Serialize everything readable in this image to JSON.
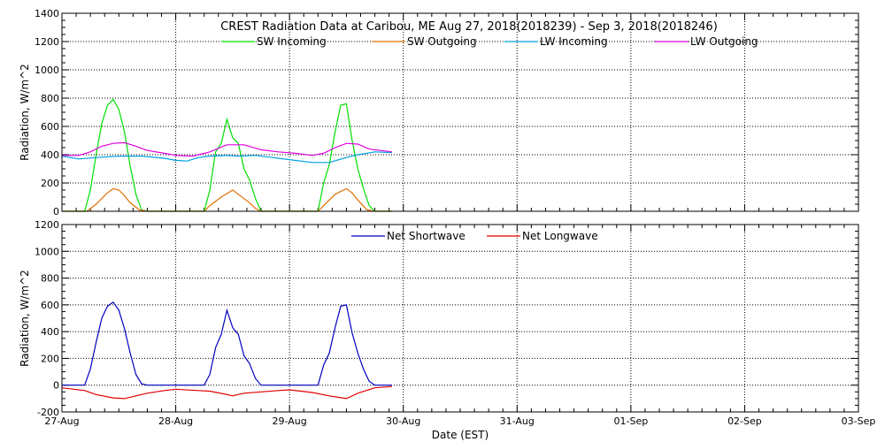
{
  "chart_data": {
    "title": "CREST Radiation Data at Caribou, ME   Aug 27, 2018(2018239) - Sep  3, 2018(2018246)",
    "xlabel": "Date (EST)",
    "x_ticks": [
      "27-Aug",
      "28-Aug",
      "29-Aug",
      "30-Aug",
      "31-Aug",
      "01-Sep",
      "02-Sep",
      "03-Sep"
    ],
    "x_range_days": [
      0,
      7
    ],
    "panels": [
      {
        "type": "line",
        "ylabel": "Radiation, W/m^2",
        "ylim": [
          0,
          1400
        ],
        "yticks": [
          0,
          200,
          400,
          600,
          800,
          1000,
          1200,
          1400
        ],
        "grid": true,
        "legend": "top",
        "series": [
          {
            "name": "SW Incoming",
            "color": "#00e000",
            "x": [
              0.0,
              0.2,
              0.25,
              0.3,
              0.35,
              0.4,
              0.45,
              0.5,
              0.55,
              0.6,
              0.65,
              0.7,
              0.75,
              0.8,
              1.0,
              1.25,
              1.3,
              1.35,
              1.4,
              1.45,
              1.5,
              1.55,
              1.6,
              1.65,
              1.7,
              1.75,
              1.8,
              2.0,
              2.25,
              2.3,
              2.35,
              2.4,
              2.45,
              2.5,
              2.55,
              2.6,
              2.65,
              2.7,
              2.75,
              2.9
            ],
            "y": [
              0,
              0,
              150,
              400,
              620,
              750,
              790,
              720,
              560,
              320,
              120,
              10,
              0,
              0,
              0,
              0,
              150,
              420,
              480,
              650,
              520,
              480,
              300,
              220,
              90,
              0,
              0,
              0,
              0,
              200,
              330,
              560,
              750,
              760,
              500,
              300,
              160,
              40,
              0,
              0
            ]
          },
          {
            "name": "SW Outgoing",
            "color": "#e07000",
            "x": [
              0.0,
              0.22,
              0.3,
              0.4,
              0.45,
              0.5,
              0.55,
              0.6,
              0.68,
              0.75,
              1.0,
              1.25,
              1.3,
              1.4,
              1.5,
              1.55,
              1.65,
              1.7,
              1.75,
              2.0,
              2.25,
              2.3,
              2.4,
              2.5,
              2.55,
              2.6,
              2.68,
              2.75,
              2.9
            ],
            "y": [
              0,
              0,
              50,
              130,
              160,
              150,
              110,
              60,
              10,
              0,
              0,
              0,
              40,
              100,
              150,
              120,
              60,
              20,
              0,
              0,
              0,
              40,
              120,
              160,
              130,
              80,
              10,
              0,
              0
            ]
          },
          {
            "name": "LW Incoming",
            "color": "#00a0e0",
            "x": [
              0.0,
              0.15,
              0.3,
              0.5,
              0.7,
              0.9,
              1.0,
              1.1,
              1.2,
              1.3,
              1.45,
              1.55,
              1.7,
              1.85,
              2.0,
              2.2,
              2.35,
              2.5,
              2.6,
              2.75,
              2.9
            ],
            "y": [
              390,
              370,
              380,
              390,
              390,
              375,
              360,
              355,
              380,
              390,
              395,
              390,
              395,
              380,
              365,
              345,
              345,
              380,
              400,
              420,
              415
            ]
          },
          {
            "name": "LW Outgoing",
            "color": "#e000e0",
            "x": [
              0.0,
              0.15,
              0.25,
              0.35,
              0.45,
              0.55,
              0.65,
              0.75,
              0.9,
              1.0,
              1.15,
              1.3,
              1.45,
              1.6,
              1.75,
              1.9,
              2.05,
              2.2,
              2.3,
              2.4,
              2.5,
              2.6,
              2.7,
              2.9
            ],
            "y": [
              395,
              395,
              420,
              460,
              480,
              485,
              460,
              430,
              410,
              395,
              390,
              420,
              470,
              470,
              435,
              420,
              410,
              395,
              410,
              450,
              480,
              475,
              440,
              420
            ]
          }
        ]
      },
      {
        "type": "line",
        "ylabel": "Radiation, W/m^2",
        "ylim": [
          -200,
          1200
        ],
        "yticks": [
          -200,
          0,
          200,
          400,
          600,
          800,
          1000,
          1200
        ],
        "grid": true,
        "legend": "top",
        "series": [
          {
            "name": "Net Shortwave",
            "color": "#0000c0",
            "x": [
              0.0,
              0.2,
              0.25,
              0.3,
              0.35,
              0.4,
              0.45,
              0.5,
              0.55,
              0.6,
              0.65,
              0.7,
              0.75,
              0.8,
              1.0,
              1.25,
              1.3,
              1.35,
              1.4,
              1.45,
              1.5,
              1.55,
              1.6,
              1.65,
              1.7,
              1.75,
              1.8,
              2.0,
              2.25,
              2.3,
              2.35,
              2.4,
              2.45,
              2.5,
              2.55,
              2.6,
              2.65,
              2.7,
              2.75,
              2.9
            ],
            "y": [
              0,
              0,
              120,
              320,
              500,
              590,
              620,
              560,
              420,
              240,
              80,
              10,
              0,
              0,
              0,
              0,
              80,
              280,
              380,
              560,
              430,
              380,
              220,
              160,
              50,
              0,
              0,
              0,
              0,
              150,
              240,
              430,
              590,
              600,
              390,
              240,
              120,
              30,
              0,
              0
            ]
          },
          {
            "name": "Net Longwave",
            "color": "#e00000",
            "x": [
              0.0,
              0.2,
              0.3,
              0.45,
              0.55,
              0.65,
              0.75,
              0.9,
              1.0,
              1.2,
              1.3,
              1.45,
              1.5,
              1.6,
              1.75,
              1.9,
              2.0,
              2.2,
              2.35,
              2.5,
              2.6,
              2.75,
              2.9
            ],
            "y": [
              -20,
              -40,
              -70,
              -95,
              -100,
              -80,
              -60,
              -40,
              -30,
              -40,
              -45,
              -70,
              -80,
              -60,
              -50,
              -40,
              -35,
              -55,
              -80,
              -100,
              -60,
              -20,
              -10
            ]
          }
        ]
      }
    ]
  }
}
